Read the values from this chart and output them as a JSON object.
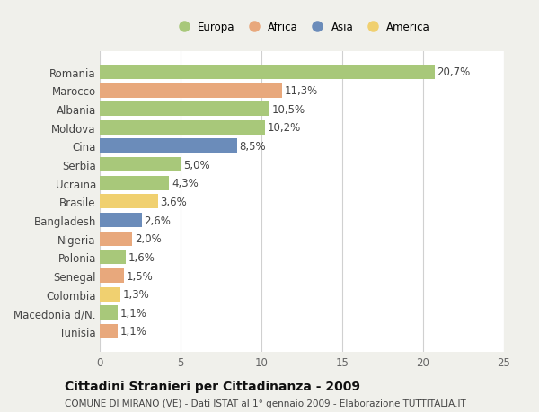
{
  "countries": [
    "Romania",
    "Marocco",
    "Albania",
    "Moldova",
    "Cina",
    "Serbia",
    "Ucraina",
    "Brasile",
    "Bangladesh",
    "Nigeria",
    "Polonia",
    "Senegal",
    "Colombia",
    "Macedonia d/N.",
    "Tunisia"
  ],
  "values": [
    20.7,
    11.3,
    10.5,
    10.2,
    8.5,
    5.0,
    4.3,
    3.6,
    2.6,
    2.0,
    1.6,
    1.5,
    1.3,
    1.1,
    1.1
  ],
  "continents": [
    "Europa",
    "Africa",
    "Europa",
    "Europa",
    "Asia",
    "Europa",
    "Europa",
    "America",
    "Asia",
    "Africa",
    "Europa",
    "Africa",
    "America",
    "Europa",
    "Africa"
  ],
  "colors": {
    "Europa": "#a8c87a",
    "Africa": "#e8a87c",
    "Asia": "#6b8cba",
    "America": "#f0d070"
  },
  "legend_order": [
    "Europa",
    "Africa",
    "Asia",
    "America"
  ],
  "xlim": [
    0,
    25
  ],
  "xticks": [
    0,
    5,
    10,
    15,
    20,
    25
  ],
  "title": "Cittadini Stranieri per Cittadinanza - 2009",
  "subtitle": "COMUNE DI MIRANO (VE) - Dati ISTAT al 1° gennaio 2009 - Elaborazione TUTTITALIA.IT",
  "background_color": "#f0f0eb",
  "plot_background": "#ffffff",
  "grid_color": "#d0d0d0",
  "text_color": "#444444",
  "label_fontsize": 8.5,
  "tick_fontsize": 8.5,
  "title_fontsize": 10,
  "subtitle_fontsize": 7.5,
  "bar_height": 0.78
}
